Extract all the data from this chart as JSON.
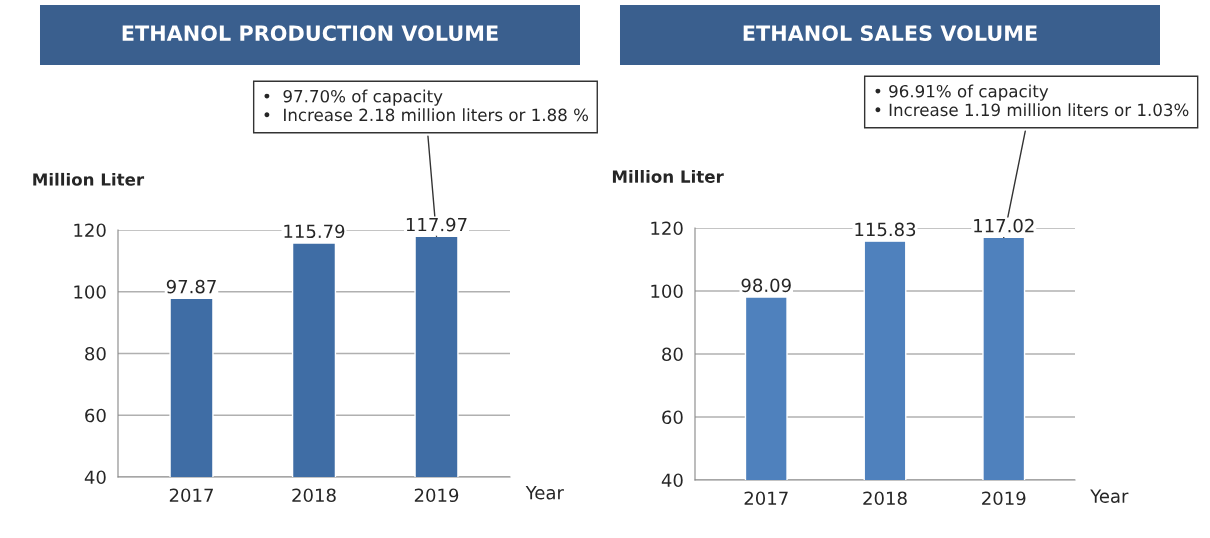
{
  "chart_data": [
    {
      "type": "bar",
      "title": "ETHANOL PRODUCTION VOLUME",
      "ylabel": "Million Liter",
      "xlabel": "Year",
      "categories": [
        "2017",
        "2018",
        "2019"
      ],
      "values": [
        97.87,
        115.79,
        117.97
      ],
      "color": "#3f6da5",
      "ylim": [
        40,
        120
      ],
      "yticks": [
        40,
        60,
        80,
        100,
        120
      ],
      "grid": "y",
      "data_labels": true,
      "annotations": [
        {
          "text": "•  97.70% of capacity\n•  Increase 2.18 million liters or 1.88 %",
          "x": "2019",
          "y": 117.97
        }
      ]
    },
    {
      "type": "bar",
      "title": "ETHANOL SALES VOLUME",
      "ylabel": "Million Liter",
      "xlabel": "Year",
      "categories": [
        "2017",
        "2018",
        "2019"
      ],
      "values": [
        98.09,
        115.83,
        117.02
      ],
      "color": "#4f81bd",
      "ylim": [
        40,
        120
      ],
      "yticks": [
        40,
        60,
        80,
        100,
        120
      ],
      "grid": "y",
      "data_labels": true,
      "annotations": [
        {
          "text": "• 96.91% of capacity\n• Increase 1.19 million liters or 1.03%",
          "x": "2019",
          "y": 117.02
        }
      ]
    }
  ]
}
